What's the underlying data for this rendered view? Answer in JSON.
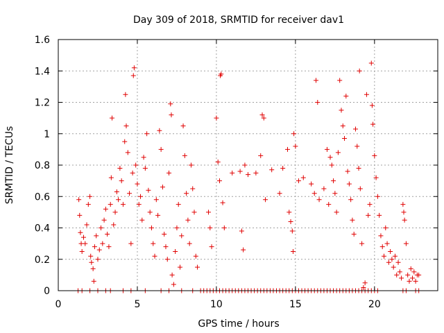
{
  "chart_data": {
    "type": "scatter",
    "title": "Day 309 of 2018, SRMTID for receiver dav1",
    "xlabel": "GPS time / hours",
    "ylabel": "SRMTID / TECUs",
    "xlim": [
      0,
      24
    ],
    "ylim": [
      0,
      1.6
    ],
    "xticks": [
      0,
      5,
      10,
      15,
      20
    ],
    "yticks": [
      0,
      0.2,
      0.4,
      0.6,
      0.8,
      1,
      1.2,
      1.4,
      1.6
    ],
    "xtick_labels": [
      "0",
      "5",
      "10",
      "15",
      "20"
    ],
    "ytick_labels": [
      "0",
      "0.2",
      "0.4",
      "0.6",
      "0.8",
      "1",
      "1.2",
      "1.4",
      "1.6"
    ],
    "grid": true,
    "marker": "+",
    "color": "#e00000",
    "series": [
      {
        "name": "SRMTID",
        "points": [
          [
            1.3,
            0.58
          ],
          [
            1.35,
            0.48
          ],
          [
            1.4,
            0.37
          ],
          [
            1.45,
            0.3
          ],
          [
            1.5,
            0.25
          ],
          [
            1.6,
            0.34
          ],
          [
            1.7,
            0.3
          ],
          [
            1.8,
            0.42
          ],
          [
            1.9,
            0.55
          ],
          [
            2.0,
            0.6
          ],
          [
            2.05,
            0.22
          ],
          [
            2.1,
            0.18
          ],
          [
            2.2,
            0.14
          ],
          [
            2.25,
            0.06
          ],
          [
            2.3,
            0.28
          ],
          [
            2.4,
            0.35
          ],
          [
            2.5,
            0.2
          ],
          [
            2.6,
            0.26
          ],
          [
            2.7,
            0.4
          ],
          [
            2.8,
            0.3
          ],
          [
            2.9,
            0.45
          ],
          [
            3.0,
            0.52
          ],
          [
            3.1,
            0.36
          ],
          [
            3.2,
            0.28
          ],
          [
            3.3,
            0.55
          ],
          [
            3.35,
            0.72
          ],
          [
            3.4,
            1.1
          ],
          [
            3.5,
            0.42
          ],
          [
            3.6,
            0.5
          ],
          [
            3.7,
            0.63
          ],
          [
            3.8,
            0.58
          ],
          [
            3.9,
            0.78
          ],
          [
            4.0,
            0.7
          ],
          [
            4.1,
            0.55
          ],
          [
            4.2,
            0.95
          ],
          [
            4.25,
            1.25
          ],
          [
            4.3,
            1.05
          ],
          [
            4.4,
            0.88
          ],
          [
            4.5,
            0.62
          ],
          [
            4.6,
            0.3
          ],
          [
            4.7,
            0.75
          ],
          [
            4.75,
            1.37
          ],
          [
            4.8,
            1.42
          ],
          [
            4.9,
            0.8
          ],
          [
            5.0,
            0.68
          ],
          [
            5.1,
            0.55
          ],
          [
            5.2,
            0.6
          ],
          [
            5.3,
            0.45
          ],
          [
            5.4,
            0.85
          ],
          [
            5.5,
            0.78
          ],
          [
            5.6,
            1.0
          ],
          [
            5.7,
            0.64
          ],
          [
            5.8,
            0.5
          ],
          [
            5.9,
            0.4
          ],
          [
            6.0,
            0.3
          ],
          [
            6.1,
            0.22
          ],
          [
            6.2,
            0.58
          ],
          [
            6.3,
            0.48
          ],
          [
            6.4,
            1.02
          ],
          [
            6.5,
            0.9
          ],
          [
            6.6,
            0.66
          ],
          [
            6.7,
            0.36
          ],
          [
            6.8,
            0.28
          ],
          [
            6.9,
            0.2
          ],
          [
            7.0,
            0.75
          ],
          [
            7.1,
            1.19
          ],
          [
            7.15,
            1.12
          ],
          [
            7.2,
            0.1
          ],
          [
            7.3,
            0.04
          ],
          [
            7.4,
            0.25
          ],
          [
            7.5,
            0.4
          ],
          [
            7.6,
            0.55
          ],
          [
            7.7,
            0.15
          ],
          [
            7.8,
            0.35
          ],
          [
            7.9,
            1.05
          ],
          [
            8.0,
            0.86
          ],
          [
            8.1,
            0.62
          ],
          [
            8.2,
            0.45
          ],
          [
            8.3,
            0.3
          ],
          [
            8.4,
            0.8
          ],
          [
            8.5,
            0.65
          ],
          [
            8.6,
            0.5
          ],
          [
            8.7,
            0.22
          ],
          [
            8.8,
            0.15
          ],
          [
            9.5,
            0.5
          ],
          [
            9.6,
            0.4
          ],
          [
            9.7,
            0.28
          ],
          [
            10.0,
            1.1
          ],
          [
            10.1,
            0.82
          ],
          [
            10.2,
            0.7
          ],
          [
            10.25,
            1.37
          ],
          [
            10.3,
            1.38
          ],
          [
            10.4,
            0.56
          ],
          [
            10.5,
            0.4
          ],
          [
            11.0,
            0.75
          ],
          [
            11.5,
            0.76
          ],
          [
            11.6,
            0.38
          ],
          [
            11.7,
            0.26
          ],
          [
            11.8,
            0.8
          ],
          [
            12.0,
            0.74
          ],
          [
            12.5,
            0.75
          ],
          [
            12.8,
            0.86
          ],
          [
            12.9,
            1.12
          ],
          [
            13.0,
            1.1
          ],
          [
            13.1,
            0.58
          ],
          [
            13.5,
            0.77
          ],
          [
            14.0,
            0.62
          ],
          [
            14.2,
            0.78
          ],
          [
            14.5,
            0.9
          ],
          [
            14.6,
            0.5
          ],
          [
            14.7,
            0.44
          ],
          [
            14.8,
            0.38
          ],
          [
            14.85,
            0.25
          ],
          [
            14.9,
            1.0
          ],
          [
            15.0,
            0.92
          ],
          [
            15.2,
            0.7
          ],
          [
            15.5,
            0.72
          ],
          [
            16.0,
            0.68
          ],
          [
            16.2,
            0.62
          ],
          [
            16.3,
            1.34
          ],
          [
            16.4,
            1.2
          ],
          [
            16.5,
            0.58
          ],
          [
            16.8,
            0.65
          ],
          [
            17.0,
            0.9
          ],
          [
            17.1,
            0.55
          ],
          [
            17.2,
            0.85
          ],
          [
            17.3,
            0.8
          ],
          [
            17.4,
            0.7
          ],
          [
            17.5,
            0.62
          ],
          [
            17.6,
            0.5
          ],
          [
            17.7,
            0.88
          ],
          [
            17.8,
            1.34
          ],
          [
            17.9,
            1.15
          ],
          [
            18.0,
            1.05
          ],
          [
            18.1,
            0.97
          ],
          [
            18.2,
            1.24
          ],
          [
            18.3,
            0.76
          ],
          [
            18.4,
            0.68
          ],
          [
            18.5,
            0.58
          ],
          [
            18.6,
            0.45
          ],
          [
            18.7,
            0.36
          ],
          [
            18.8,
            1.03
          ],
          [
            18.9,
            0.92
          ],
          [
            19.0,
            0.78
          ],
          [
            19.05,
            1.4
          ],
          [
            19.1,
            0.65
          ],
          [
            19.2,
            0.3
          ],
          [
            19.3,
            0.02
          ],
          [
            19.4,
            0.05
          ],
          [
            19.5,
            1.25
          ],
          [
            19.6,
            0.48
          ],
          [
            19.7,
            0.55
          ],
          [
            19.8,
            1.45
          ],
          [
            19.85,
            1.18
          ],
          [
            19.9,
            1.06
          ],
          [
            20.0,
            0.86
          ],
          [
            20.1,
            0.72
          ],
          [
            20.2,
            0.6
          ],
          [
            20.3,
            0.48
          ],
          [
            20.4,
            0.35
          ],
          [
            20.5,
            0.28
          ],
          [
            20.6,
            0.22
          ],
          [
            20.7,
            0.4
          ],
          [
            20.8,
            0.3
          ],
          [
            20.9,
            0.18
          ],
          [
            21.0,
            0.25
          ],
          [
            21.1,
            0.2
          ],
          [
            21.2,
            0.15
          ],
          [
            21.3,
            0.22
          ],
          [
            21.4,
            0.1
          ],
          [
            21.5,
            0.18
          ],
          [
            21.6,
            0.12
          ],
          [
            21.7,
            0.08
          ],
          [
            21.8,
            0.55
          ],
          [
            21.85,
            0.5
          ],
          [
            21.9,
            0.45
          ],
          [
            22.0,
            0.3
          ],
          [
            22.1,
            0.1
          ],
          [
            22.2,
            0.06
          ],
          [
            22.3,
            0.14
          ],
          [
            22.4,
            0.08
          ],
          [
            22.5,
            0.12
          ],
          [
            22.6,
            0.06
          ],
          [
            22.7,
            0.1
          ],
          [
            22.8,
            0.1
          ],
          [
            1.25,
            0.0
          ],
          [
            1.5,
            0.0
          ],
          [
            2.0,
            0.0
          ],
          [
            2.5,
            0.0
          ],
          [
            3.0,
            0.0
          ],
          [
            3.3,
            0.0
          ],
          [
            4.1,
            0.0
          ],
          [
            4.6,
            0.0
          ],
          [
            5.5,
            0.0
          ],
          [
            6.5,
            0.0
          ],
          [
            7.0,
            0.0
          ],
          [
            7.8,
            0.0
          ],
          [
            8.5,
            0.0
          ],
          [
            9.0,
            0.0
          ],
          [
            9.2,
            0.0
          ],
          [
            9.4,
            0.0
          ],
          [
            9.6,
            0.0
          ],
          [
            9.8,
            0.0
          ],
          [
            10.0,
            0.0
          ],
          [
            10.2,
            0.0
          ],
          [
            10.4,
            0.0
          ],
          [
            10.6,
            0.0
          ],
          [
            10.8,
            0.0
          ],
          [
            11.0,
            0.0
          ],
          [
            11.2,
            0.0
          ],
          [
            11.4,
            0.0
          ],
          [
            11.6,
            0.0
          ],
          [
            11.8,
            0.0
          ],
          [
            12.0,
            0.0
          ],
          [
            12.2,
            0.0
          ],
          [
            12.4,
            0.0
          ],
          [
            12.6,
            0.0
          ],
          [
            12.8,
            0.0
          ],
          [
            13.0,
            0.0
          ],
          [
            13.2,
            0.0
          ],
          [
            13.4,
            0.0
          ],
          [
            13.6,
            0.0
          ],
          [
            13.8,
            0.0
          ],
          [
            14.0,
            0.0
          ],
          [
            14.2,
            0.0
          ],
          [
            14.4,
            0.0
          ],
          [
            14.6,
            0.0
          ],
          [
            14.8,
            0.0
          ],
          [
            15.0,
            0.0
          ],
          [
            15.2,
            0.0
          ],
          [
            15.4,
            0.0
          ],
          [
            15.6,
            0.0
          ],
          [
            15.8,
            0.0
          ],
          [
            16.0,
            0.0
          ],
          [
            16.2,
            0.0
          ],
          [
            16.4,
            0.0
          ],
          [
            16.6,
            0.0
          ],
          [
            16.8,
            0.0
          ],
          [
            17.0,
            0.0
          ],
          [
            17.2,
            0.0
          ],
          [
            17.4,
            0.0
          ],
          [
            17.6,
            0.0
          ],
          [
            17.8,
            0.0
          ],
          [
            18.0,
            0.0
          ],
          [
            18.2,
            0.0
          ],
          [
            18.4,
            0.0
          ],
          [
            18.6,
            0.0
          ],
          [
            18.8,
            0.0
          ],
          [
            19.0,
            0.0
          ],
          [
            19.2,
            0.0
          ],
          [
            19.4,
            0.0
          ],
          [
            19.6,
            0.0
          ],
          [
            19.8,
            0.0
          ],
          [
            20.0,
            0.0
          ],
          [
            20.2,
            0.0
          ],
          [
            21.8,
            0.0
          ],
          [
            22.0,
            0.0
          ],
          [
            22.6,
            0.0
          ],
          [
            22.8,
            0.0
          ]
        ]
      }
    ]
  }
}
